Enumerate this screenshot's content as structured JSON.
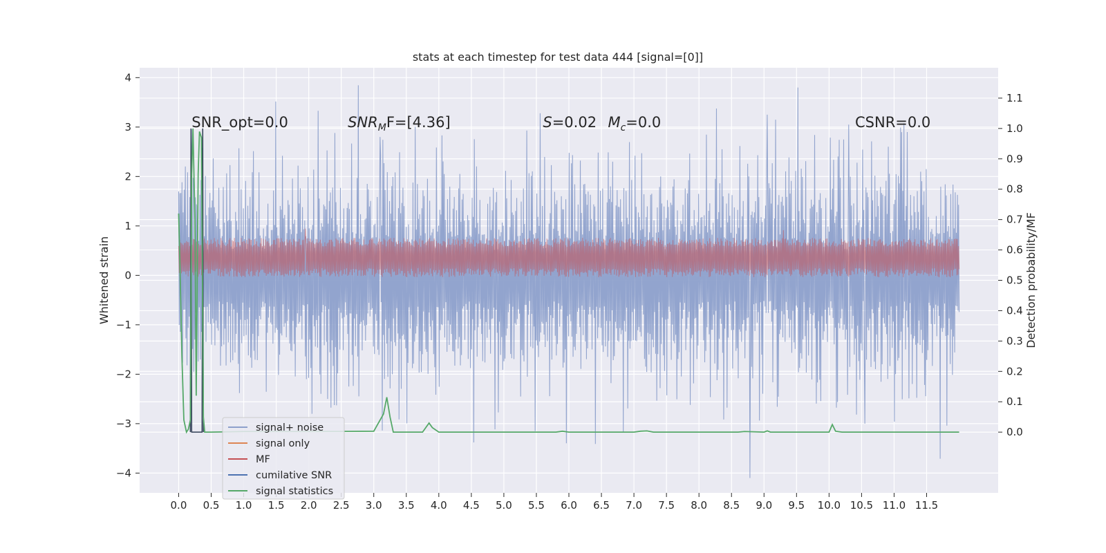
{
  "chart_data": {
    "type": "line",
    "title": "stats at each timestep for test data 444 [signal=[0]]",
    "xlabel": "",
    "ylabel": "Whitened strain",
    "y2label": "Detection probability/MF",
    "xlim": [
      -0.6,
      12.6
    ],
    "ylim": [
      -4.4,
      4.2
    ],
    "y2lim": [
      -0.2,
      1.2
    ],
    "x_ticks": [
      0.0,
      0.5,
      1.0,
      1.5,
      2.0,
      2.5,
      3.0,
      3.5,
      4.0,
      4.5,
      5.0,
      5.5,
      6.0,
      6.5,
      7.0,
      7.5,
      8.0,
      8.5,
      9.0,
      9.5,
      10.0,
      10.5,
      11.0,
      11.5
    ],
    "x_tick_labels": [
      "0.0",
      "0.5",
      "1.0",
      "1.5",
      "2.0",
      "2.5",
      "3.0",
      "3.5",
      "4.0",
      "4.5",
      "5.0",
      "5.5",
      "6.0",
      "6.5",
      "7.0",
      "7.5",
      "8.0",
      "8.5",
      "9.0",
      "9.5",
      "10.0",
      "10.5",
      "11.0",
      "11.5"
    ],
    "y_ticks": [
      -4,
      -3,
      -2,
      -1,
      0,
      1,
      2,
      3,
      4
    ],
    "y_tick_labels": [
      "−4",
      "−3",
      "−2",
      "−1",
      "0",
      "1",
      "2",
      "3",
      "4"
    ],
    "y2_ticks": [
      0.0,
      0.1,
      0.2,
      0.3,
      0.4,
      0.5,
      0.6,
      0.7,
      0.8,
      0.9,
      1.0,
      1.1
    ],
    "y2_tick_labels": [
      "0.0",
      "0.1",
      "0.2",
      "0.3",
      "0.4",
      "0.5",
      "0.6",
      "0.7",
      "0.8",
      "0.9",
      "1.0",
      "1.1"
    ],
    "grid": true,
    "legend_position": "bottom-left",
    "legend": [
      {
        "name": "signal+ noise",
        "color": "#8da0cb"
      },
      {
        "name": "signal only",
        "color": "#dd8452"
      },
      {
        "name": "MF",
        "color": "#c44e52"
      },
      {
        "name": "cumilative SNR",
        "color": "#4c72b0"
      },
      {
        "name": "signal statistics",
        "color": "#55a868"
      }
    ],
    "series": [
      {
        "name": "signal+ noise",
        "axis": "left",
        "color": "#8da0cb",
        "x_range": [
          0.0,
          12.0
        ],
        "typical_band": [
          -1.7,
          1.75
        ],
        "notable_peaks": [
          {
            "x": 9.52,
            "y": 3.8
          },
          {
            "x": 8.78,
            "y": -4.1
          },
          {
            "x": 9.05,
            "y": 3.25
          },
          {
            "x": 10.3,
            "y": 3.05
          },
          {
            "x": 0.2,
            "y": 2.95
          },
          {
            "x": 3.1,
            "y": 2.8
          },
          {
            "x": 5.48,
            "y": -3.15
          },
          {
            "x": 10.55,
            "y": -3.0
          },
          {
            "x": 11.2,
            "y": 2.9
          }
        ]
      },
      {
        "name": "MF",
        "axis": "right",
        "color": "#c44e52",
        "x_range": [
          0.0,
          12.0
        ],
        "typical_band": [
          0.51,
          0.64
        ],
        "notable_peaks": [
          {
            "x": 1.95,
            "y": 0.67
          },
          {
            "x": 9.3,
            "y": 0.665
          }
        ]
      },
      {
        "name": "cumilative SNR",
        "axis": "right",
        "color": "#2f3d54",
        "x": [
          0.18,
          0.19,
          0.2,
          0.36,
          0.37,
          0.38
        ],
        "y": [
          0.0,
          1.0,
          0.0,
          0.0,
          1.0,
          0.0
        ]
      },
      {
        "name": "signal statistics",
        "axis": "right",
        "color": "#55a868",
        "x": [
          0.0,
          0.02,
          0.05,
          0.08,
          0.12,
          0.15,
          0.18,
          0.2,
          0.22,
          0.25,
          0.27,
          0.3,
          0.32,
          0.35,
          0.38,
          0.4,
          0.5,
          1.0,
          2.0,
          3.0,
          3.15,
          3.2,
          3.25,
          3.3,
          3.5,
          3.75,
          3.85,
          3.9,
          4.0,
          4.1,
          5.0,
          5.8,
          5.9,
          6.0,
          7.0,
          7.1,
          7.2,
          7.3,
          8.0,
          8.6,
          8.7,
          9.0,
          9.05,
          9.1,
          10.0,
          10.05,
          10.1,
          10.2,
          11.0,
          12.0
        ],
        "y": [
          0.72,
          0.55,
          0.25,
          0.04,
          0.0,
          0.01,
          0.04,
          0.85,
          1.0,
          0.7,
          0.12,
          0.85,
          0.99,
          0.97,
          0.05,
          0.0,
          0.0,
          0.002,
          0.002,
          0.003,
          0.06,
          0.115,
          0.05,
          0.0,
          0.0,
          0.0,
          0.03,
          0.015,
          0.0,
          0.0,
          0.0,
          0.0,
          0.003,
          0.0,
          0.0,
          0.003,
          0.004,
          0.0,
          0.0,
          0.0,
          0.002,
          0.0,
          0.004,
          0.0,
          0.0,
          0.025,
          0.003,
          0.0,
          0.0,
          0.0
        ]
      }
    ],
    "annotations": [
      {
        "text": "SNR_opt=0.0",
        "x": 0.2,
        "y2": 1.0
      },
      {
        "text": "SNRₘF=[4.36]",
        "x": 2.6,
        "y2": 1.0,
        "italic_prefix": "SNR",
        "sub": "M",
        "rest": "F=[4.36]"
      },
      {
        "text": "S=0.02",
        "x": 5.6,
        "y2": 1.0,
        "italic_prefix": "S",
        "rest": "=0.02"
      },
      {
        "text": "Mc=0.0",
        "x": 6.6,
        "y2": 1.0,
        "italic_prefix": "M",
        "sub": "c",
        "rest": "=0.0"
      },
      {
        "text": "CSNR=0.0",
        "x": 10.4,
        "y2": 1.0
      }
    ]
  }
}
